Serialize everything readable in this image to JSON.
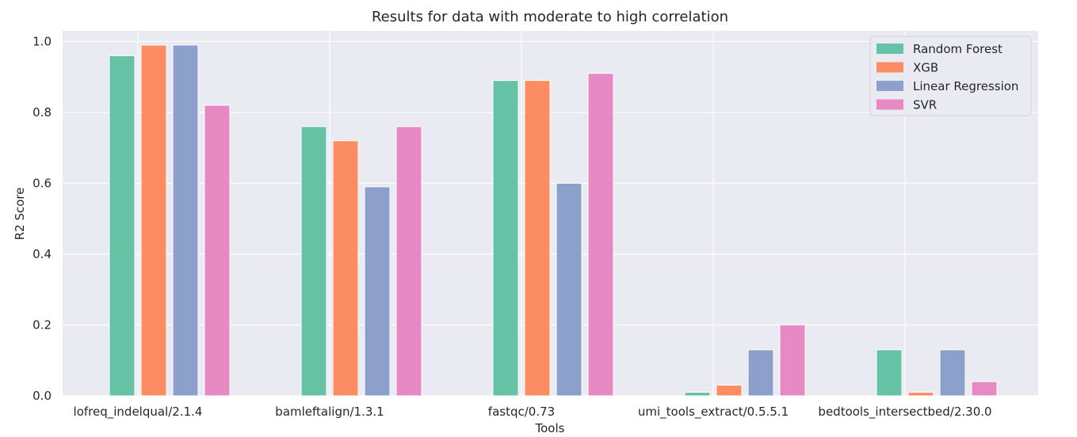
{
  "chart_data": {
    "type": "bar",
    "title": "Results for data with moderate to high correlation",
    "xlabel": "Tools",
    "ylabel": "R2 Score",
    "categories": [
      "lofreq_indelqual/2.1.4",
      "bamleftalign/1.3.1",
      "fastqc/0.73",
      "umi_tools_extract/0.5.5.1",
      "bedtools_intersectbed/2.30.0"
    ],
    "series": [
      {
        "name": "Random Forest",
        "color": "#66c2a5",
        "values": [
          0.96,
          0.76,
          0.89,
          0.01,
          0.13
        ]
      },
      {
        "name": "XGB",
        "color": "#fc8d62",
        "values": [
          0.99,
          0.72,
          0.89,
          0.03,
          0.01
        ]
      },
      {
        "name": "Linear Regression",
        "color": "#8da0cb",
        "values": [
          0.99,
          0.59,
          0.6,
          0.13,
          0.13
        ]
      },
      {
        "name": "SVR",
        "color": "#e78ac3",
        "values": [
          0.82,
          0.76,
          0.91,
          0.2,
          0.04
        ]
      }
    ],
    "yticks": [
      "0.0",
      "0.2",
      "0.4",
      "0.6",
      "0.8",
      "1.0"
    ],
    "ylim": [
      0,
      1.03
    ],
    "grid": true,
    "legend_position": "top-right",
    "background": "#eaeaf2"
  }
}
